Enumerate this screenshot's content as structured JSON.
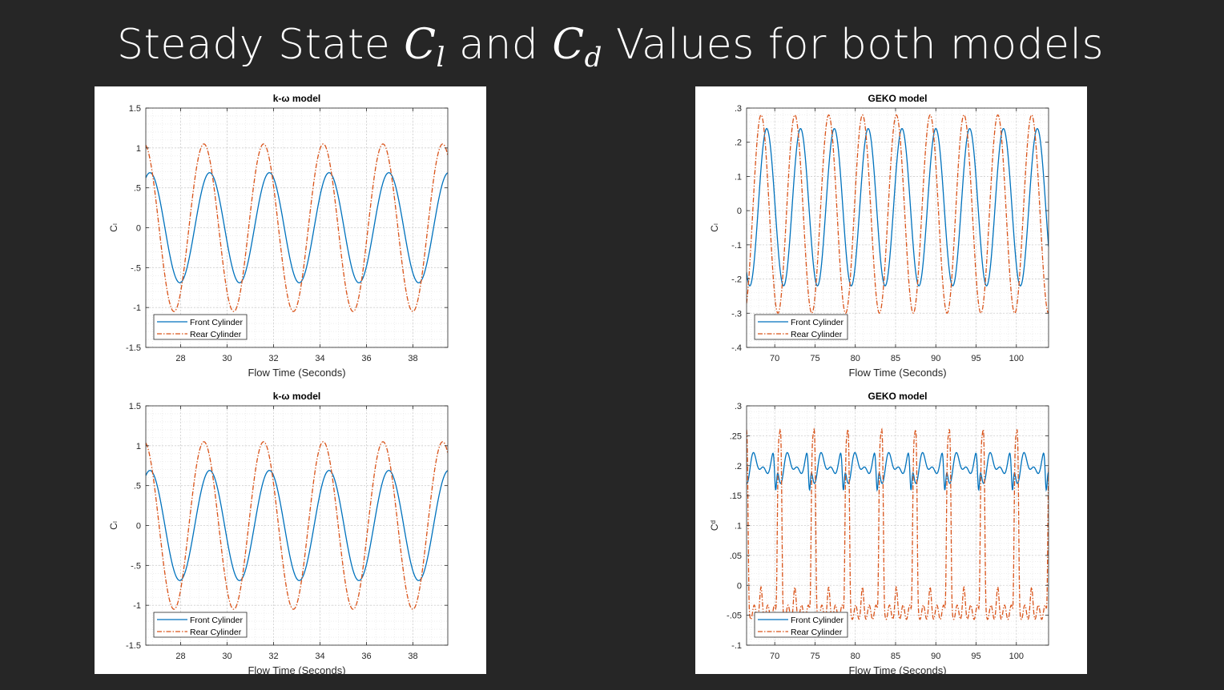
{
  "slide": {
    "title_prefix": "Steady State ",
    "title_cl_var": "C",
    "title_cl_sub": "l",
    "title_and": " and ",
    "title_cd_var": "C",
    "title_cd_sub": "d",
    "title_suffix": " Values for both models"
  },
  "chart_data": [
    {
      "type": "line",
      "title": "k-ω  model",
      "xlabel": "Flow Time (Seconds)",
      "ylabel": "Cₗ",
      "xlim": [
        26.5,
        39.5
      ],
      "ylim": [
        -1.5,
        1.5
      ],
      "xticks": [
        28,
        30,
        32,
        34,
        36,
        38
      ],
      "yticks": [
        -1.5,
        -1,
        -0.5,
        0,
        0.5,
        1,
        1.5
      ],
      "grid": true,
      "legend_position": "bottom-left",
      "series": [
        {
          "name": "Front Cylinder",
          "color": "#0072BD",
          "style": "solid",
          "kind": "sine",
          "amplitude": 0.69,
          "offset": 0.0,
          "period": 2.57,
          "peak_at": 29.25
        },
        {
          "name": "Rear Cylinder",
          "color": "#D95319",
          "style": "dashdot",
          "kind": "sine",
          "amplitude": 1.05,
          "offset": 0.0,
          "period": 2.57,
          "peak_at": 29.0
        }
      ]
    },
    {
      "type": "line",
      "title": "GEKO model",
      "xlabel": "Flow Time (Seconds)",
      "ylabel": "Cₗ",
      "xlim": [
        66.5,
        104
      ],
      "ylim": [
        -0.4,
        0.3
      ],
      "xticks": [
        70,
        75,
        80,
        85,
        90,
        95,
        100
      ],
      "yticks": [
        -0.4,
        -0.3,
        -0.2,
        -0.1,
        0,
        0.1,
        0.2,
        0.3
      ],
      "grid": true,
      "legend_position": "bottom-left",
      "series": [
        {
          "name": "Front Cylinder",
          "color": "#0072BD",
          "style": "solid",
          "kind": "sine",
          "amplitude": 0.23,
          "offset": 0.01,
          "period": 4.2,
          "peak_at": 69.0
        },
        {
          "name": "Rear Cylinder",
          "color": "#D95319",
          "style": "dashdot",
          "kind": "sine",
          "amplitude": 0.29,
          "offset": -0.01,
          "period": 4.2,
          "peak_at": 68.3
        }
      ]
    },
    {
      "type": "line",
      "title": "k-ω  model",
      "xlabel": "Flow Time (Seconds)",
      "ylabel": "Cₗ",
      "xlim": [
        26.5,
        39.5
      ],
      "ylim": [
        -1.5,
        1.5
      ],
      "xticks": [
        28,
        30,
        32,
        34,
        36,
        38
      ],
      "yticks": [
        -1.5,
        -1,
        -0.5,
        0,
        0.5,
        1,
        1.5
      ],
      "grid": true,
      "legend_position": "bottom-left",
      "series": [
        {
          "name": "Front Cylinder",
          "color": "#0072BD",
          "style": "solid",
          "kind": "sine",
          "amplitude": 0.69,
          "offset": 0.0,
          "period": 2.57,
          "peak_at": 29.25
        },
        {
          "name": "Rear Cylinder",
          "color": "#D95319",
          "style": "dashdot",
          "kind": "sine",
          "amplitude": 1.05,
          "offset": 0.0,
          "period": 2.57,
          "peak_at": 29.0
        }
      ]
    },
    {
      "type": "line",
      "title": "GEKO model",
      "xlabel": "Flow Time (Seconds)",
      "ylabel": "Cᵈ",
      "xlim": [
        66.5,
        104
      ],
      "ylim": [
        -0.1,
        0.3
      ],
      "xticks": [
        70,
        75,
        80,
        85,
        90,
        95,
        100
      ],
      "yticks": [
        -0.1,
        -0.05,
        0,
        0.05,
        0.1,
        0.15,
        0.2,
        0.25,
        0.3
      ],
      "grid": true,
      "legend_position": "bottom-left",
      "series": [
        {
          "name": "Front Cylinder",
          "color": "#0072BD",
          "style": "solid",
          "kind": "drag-front",
          "base": 0.2,
          "wobble": 0.03,
          "max": 0.24,
          "min": 0.14,
          "period": 4.2,
          "dip_at": 70.1
        },
        {
          "name": "Rear Cylinder",
          "color": "#D95319",
          "style": "dashdot",
          "kind": "drag-rear",
          "peak": 0.255,
          "low": -0.045,
          "period": 4.2,
          "peak_at": 70.6
        }
      ]
    }
  ]
}
